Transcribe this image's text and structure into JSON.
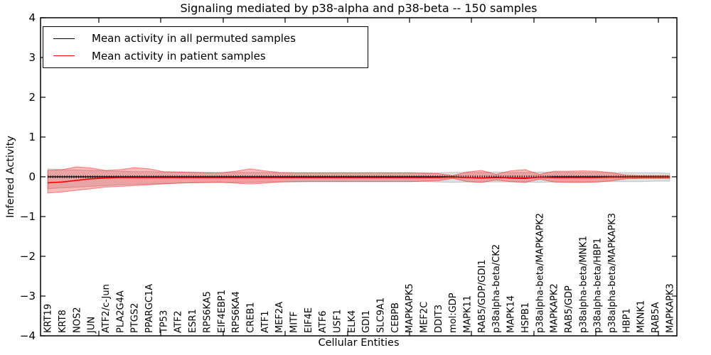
{
  "title": "Signaling mediated by p38-alpha and p38-beta -- 150 samples",
  "xlabel": "Cellular Entities",
  "ylabel": "Inferred Activity",
  "legend": {
    "items": [
      {
        "label": "Mean activity in all permuted samples",
        "color": "#000000"
      },
      {
        "label": "Mean activity in patient samples",
        "color": "#ff0000"
      }
    ]
  },
  "colors": {
    "permuted_line": "#000000",
    "patient_line": "#ff0000",
    "permuted_band_fill": "rgba(165,165,165,0.35)",
    "permuted_band_edge": "rgba(140,140,140,0.45)",
    "patient_band_fill": "rgba(255,0,0,0.27)",
    "patient_band_edge": "rgba(255,0,0,0.45)"
  },
  "chart_data": {
    "type": "line",
    "title": "Signaling mediated by p38-alpha and p38-beta -- 150 samples",
    "xlabel": "Cellular Entities",
    "ylabel": "Inferred Activity",
    "ylim": [
      -4,
      4
    ],
    "yticks": [
      -4,
      -3,
      -2,
      -1,
      0,
      1,
      2,
      3,
      4
    ],
    "grid": false,
    "legend_position": "upper left",
    "zero_line_style": "dotted",
    "categories": [
      "KRT19",
      "KRT8",
      "NOS2",
      "JUN",
      "ATF2/c-Jun",
      "PLA2G4A",
      "PTGS2",
      "PPARGC1A",
      "TP53",
      "ATF2",
      "ESR1",
      "RPS6KA5",
      "EIF4EBP1",
      "RPS6KA4",
      "CREB1",
      "ATF1",
      "MEF2A",
      "MITF",
      "EIF4E",
      "ATF6",
      "USF1",
      "ELK4",
      "GDI1",
      "SLC9A1",
      "CEBPB",
      "MAPKAPK5",
      "MEF2C",
      "DDIT3",
      "mol:GDP",
      "MAPK11",
      "RAB5/GDP/GDI1",
      "p38alpha-beta/CK2",
      "MAPK14",
      "HSPB1",
      "p38alpha-beta/MAPKAPK2",
      "MAPKAPK2",
      "RAB5/GDP",
      "p38alpha-beta/MNK1",
      "p38alpha-beta/HBP1",
      "p38alpha-beta/MAPKAPK3",
      "HBP1",
      "MKNK1",
      "RAB5A",
      "MAPKAPK3"
    ],
    "series": [
      {
        "name": "Mean activity in all permuted samples",
        "color": "#000000",
        "values": [
          0,
          0,
          0,
          0,
          0,
          0,
          0,
          0,
          0,
          0,
          0,
          0,
          0,
          0,
          0,
          0,
          0,
          0,
          0,
          0,
          0,
          0,
          0,
          0,
          0,
          0,
          0,
          0,
          0,
          -0.02,
          -0.03,
          -0.01,
          -0.03,
          -0.04,
          -0.01,
          0,
          0,
          0,
          0,
          0,
          0,
          0,
          0,
          0
        ],
        "band_upper": [
          0.2,
          0.18,
          0.17,
          0.16,
          0.15,
          0.14,
          0.13,
          0.13,
          0.12,
          0.12,
          0.12,
          0.11,
          0.11,
          0.11,
          0.11,
          0.11,
          0.1,
          0.1,
          0.1,
          0.1,
          0.1,
          0.1,
          0.1,
          0.1,
          0.1,
          0.1,
          0.1,
          0.1,
          0.11,
          0.11,
          0.11,
          0.12,
          0.11,
          0.11,
          0.12,
          0.11,
          0.11,
          0.11,
          0.11,
          0.11,
          0.1,
          0.1,
          0.1,
          0.09
        ],
        "band_lower": [
          -0.3,
          -0.28,
          -0.26,
          -0.24,
          -0.22,
          -0.2,
          -0.19,
          -0.18,
          -0.17,
          -0.16,
          -0.15,
          -0.15,
          -0.14,
          -0.14,
          -0.14,
          -0.13,
          -0.13,
          -0.13,
          -0.12,
          -0.12,
          -0.12,
          -0.12,
          -0.12,
          -0.12,
          -0.12,
          -0.12,
          -0.12,
          -0.13,
          -0.14,
          -0.13,
          -0.13,
          -0.13,
          -0.13,
          -0.13,
          -0.14,
          -0.13,
          -0.13,
          -0.13,
          -0.13,
          -0.12,
          -0.12,
          -0.12,
          -0.11,
          -0.11
        ]
      },
      {
        "name": "Mean activity in patient samples",
        "color": "#ff0000",
        "values": [
          -0.15,
          -0.13,
          -0.09,
          -0.05,
          -0.03,
          -0.02,
          -0.02,
          -0.02,
          -0.02,
          -0.02,
          -0.02,
          -0.02,
          -0.02,
          -0.02,
          -0.02,
          -0.02,
          -0.02,
          -0.02,
          -0.02,
          -0.02,
          -0.02,
          -0.02,
          -0.02,
          -0.02,
          -0.02,
          -0.02,
          -0.02,
          -0.02,
          -0.01,
          -0.02,
          -0.03,
          -0.02,
          -0.02,
          -0.03,
          -0.01,
          -0.02,
          -0.02,
          -0.02,
          -0.02,
          -0.01,
          -0.01,
          -0.01,
          -0.01,
          -0.01
        ],
        "band_upper": [
          0.16,
          0.18,
          0.25,
          0.22,
          0.16,
          0.18,
          0.23,
          0.2,
          0.13,
          0.12,
          0.11,
          0.1,
          0.1,
          0.14,
          0.2,
          0.15,
          0.11,
          0.1,
          0.1,
          0.1,
          0.1,
          0.1,
          0.1,
          0.1,
          0.1,
          0.1,
          0.09,
          0.08,
          0.03,
          0.12,
          0.16,
          0.06,
          0.15,
          0.18,
          0.06,
          0.14,
          0.14,
          0.15,
          0.14,
          0.1,
          0.04,
          0.03,
          0.03,
          0.03
        ],
        "band_lower": [
          -0.41,
          -0.38,
          -0.34,
          -0.3,
          -0.26,
          -0.24,
          -0.22,
          -0.2,
          -0.18,
          -0.16,
          -0.15,
          -0.14,
          -0.14,
          -0.16,
          -0.18,
          -0.16,
          -0.13,
          -0.12,
          -0.12,
          -0.12,
          -0.12,
          -0.12,
          -0.12,
          -0.12,
          -0.12,
          -0.12,
          -0.11,
          -0.1,
          -0.04,
          -0.12,
          -0.14,
          -0.08,
          -0.12,
          -0.14,
          -0.06,
          -0.13,
          -0.14,
          -0.14,
          -0.13,
          -0.1,
          -0.05,
          -0.04,
          -0.04,
          -0.04
        ]
      }
    ]
  }
}
